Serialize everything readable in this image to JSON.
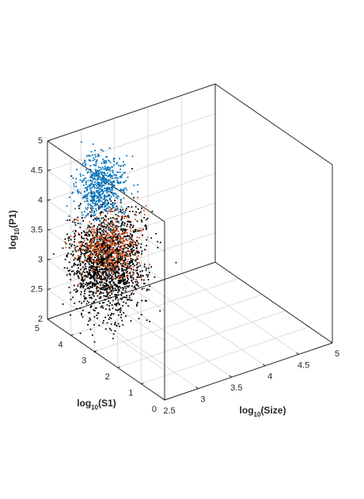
{
  "chart_data": {
    "type": "scatter",
    "title": "",
    "dimensions": "3d",
    "xlabel": {
      "prefix": "log",
      "sub": "10",
      "suffix": "(Size)"
    },
    "ylabel": {
      "prefix": "log",
      "sub": "10",
      "suffix": "(S1)"
    },
    "zlabel": {
      "prefix": "log",
      "sub": "10",
      "suffix": "(P1)"
    },
    "xlim": [
      2.5,
      5
    ],
    "ylim": [
      0,
      5
    ],
    "zlim": [
      2,
      5
    ],
    "xticks": [
      "2.5",
      "3",
      "3.5",
      "4",
      "4.5",
      "5"
    ],
    "yticks": [
      "0",
      "1",
      "2",
      "3",
      "4",
      "5"
    ],
    "zticks": [
      "2",
      "2.5",
      "3",
      "3.5",
      "4",
      "4.5",
      "5"
    ],
    "grid": true,
    "legend": "none",
    "series": [
      {
        "color": "#000000",
        "count": 1800,
        "cluster": {
          "size_mean": 2.9,
          "size_sd": 0.25,
          "s1_mean": 3.6,
          "s1_sd": 0.4,
          "p1_mean": 3.2,
          "p1_sd": 0.4
        }
      },
      {
        "color": "#D95319",
        "count": 450,
        "cluster": {
          "size_mean": 3.0,
          "size_sd": 0.2,
          "s1_mean": 3.8,
          "s1_sd": 0.3,
          "p1_mean": 3.35,
          "p1_sd": 0.25
        }
      },
      {
        "color": "#0072BD",
        "count": 600,
        "cluster": {
          "size_mean": 3.1,
          "size_sd": 0.15,
          "s1_mean": 4.4,
          "s1_sd": 0.25,
          "p1_mean": 4.15,
          "p1_sd": 0.25
        }
      }
    ]
  }
}
